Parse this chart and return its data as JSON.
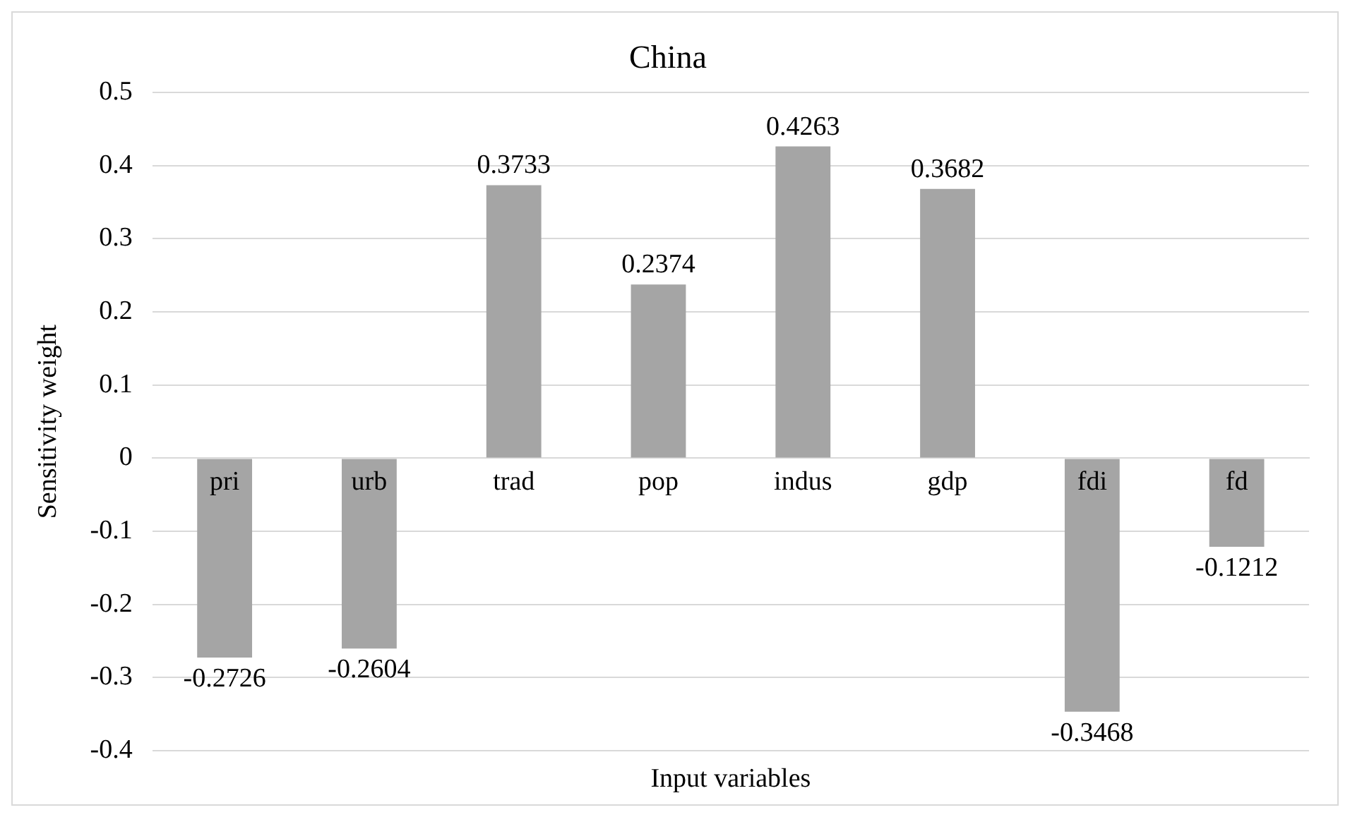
{
  "chart_data": {
    "type": "bar",
    "title": "China",
    "xlabel": "Input variables",
    "ylabel": "Sensitivity weight",
    "categories": [
      "pri",
      "urb",
      "trad",
      "pop",
      "indus",
      "gdp",
      "fdi",
      "fd"
    ],
    "values": [
      -0.2726,
      -0.2604,
      0.3733,
      0.2374,
      0.4263,
      0.3682,
      -0.3468,
      -0.1212
    ],
    "color": "#a5a5a5",
    "ylim": [
      -0.4,
      0.5
    ],
    "yticks": [
      -0.4,
      -0.3,
      -0.2,
      -0.1,
      0,
      0.1,
      0.2,
      0.3,
      0.4,
      0.5
    ],
    "grid": "y",
    "data_labels": true,
    "legend": false
  }
}
